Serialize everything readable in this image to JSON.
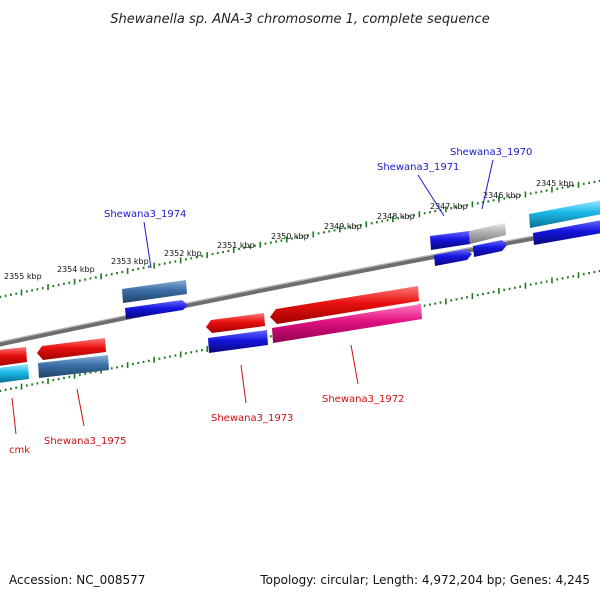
{
  "title": "Shewanella sp. ANA-3 chromosome 1, complete sequence",
  "ticks": [
    {
      "label": "2355 kbp"
    },
    {
      "label": "2354 kbp"
    },
    {
      "label": "2353 kbp"
    },
    {
      "label": "2352 kbp"
    },
    {
      "label": "2351 kbp"
    },
    {
      "label": "2350 kbp"
    },
    {
      "label": "2349 kbp"
    },
    {
      "label": "2348 kbp"
    },
    {
      "label": "2347 kbp"
    },
    {
      "label": "2346 kbp"
    },
    {
      "label": "2345 kbp"
    }
  ],
  "gene_labels": {
    "sh1970": "Shewana3_1970",
    "sh1971": "Shewana3_1971",
    "sh1974": "Shewana3_1974",
    "sh1972": "Shewana3_1972",
    "sh1973": "Shewana3_1973",
    "sh1975": "Shewana3_1975",
    "cmk": "cmk"
  },
  "colors": {
    "backbone": "#808080",
    "tick": "#1e7a1e",
    "forward_label": "#1a1acc",
    "reverse_label": "#cc1010",
    "red": "#e81010",
    "blue": "#1414dd",
    "steel": "#3a6ea5",
    "cyan": "#1ab8e8",
    "pink": "#e01080",
    "gray": "#b0b0b0"
  },
  "footer": {
    "accession": "Accession: NC_008577",
    "summary": "Topology: circular; Length: 4,972,204 bp; Genes: 4,245"
  }
}
